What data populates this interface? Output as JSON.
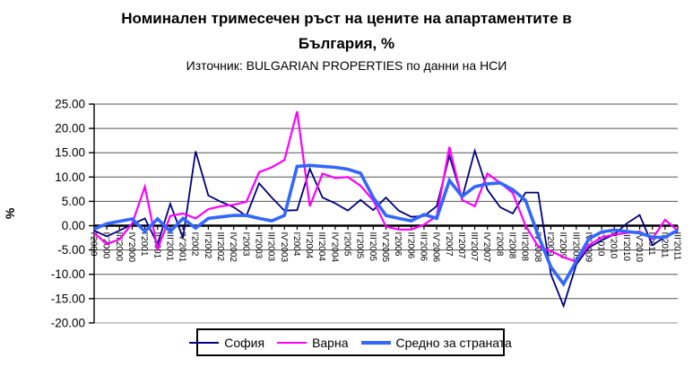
{
  "title": {
    "line1": "Номинален тримесечен ръст на цените на апартаментите в",
    "line2": "България, %",
    "subtitle": "Източник: BULGARIAN PROPERTIES по данни на НСИ"
  },
  "y_axis": {
    "label": "%",
    "ticks": [
      "25.00",
      "20.00",
      "15.00",
      "10.00",
      "5.00",
      "0.00",
      "-5.00",
      "-10.00",
      "-15.00",
      "-20.00"
    ],
    "max": 25,
    "min": -20,
    "step": 5
  },
  "chart_data": {
    "type": "line",
    "title": "Номинален тримесечен ръст на цените на апартаментите в България, %",
    "subtitle": "Източник: BULGARIAN PROPERTIES по данни на НСИ",
    "xlabel": "",
    "ylabel": "%",
    "ylim": [
      -20,
      25
    ],
    "grid": true,
    "legend_position": "bottom",
    "categories": [
      "I'2000",
      "II'2000",
      "III'2000",
      "IV'2000",
      "I'2001",
      "II'2001",
      "III'2001",
      "IV'2001",
      "I'2002",
      "II'2002",
      "III'2002",
      "IV'2002",
      "I'2003",
      "II'2003",
      "III'2003",
      "IV'2003",
      "I'2004",
      "II'2004",
      "III'2004",
      "IV'2004",
      "I'2005",
      "II'2005",
      "III'2005",
      "IV'2005",
      "I'2006",
      "II'2006",
      "III'2006",
      "IV'2006",
      "I'2007",
      "II'2007",
      "III'2007",
      "IV'2007",
      "I'2008",
      "II'2008",
      "III'2008",
      "IV'2008",
      "I'2009",
      "II'2009",
      "III'2009",
      "IV'2009",
      "I'2010",
      "II'2010",
      "III'2010",
      "IV'2010",
      "I'2011",
      "II'2011",
      "III'2011"
    ],
    "series": [
      {
        "name": "София",
        "color": "#000080",
        "stroke_width": 1.8,
        "values": [
          -1.0,
          -2.2,
          -1.0,
          0.3,
          1.5,
          -3.8,
          4.5,
          -2.5,
          15.3,
          6.2,
          4.9,
          3.8,
          2.0,
          8.7,
          5.8,
          3.1,
          3.2,
          11.7,
          5.8,
          4.6,
          3.1,
          5.3,
          3.2,
          5.8,
          3.1,
          1.8,
          2.0,
          4.0,
          14.4,
          5.6,
          15.4,
          7.4,
          3.8,
          2.5,
          6.8,
          6.8,
          -10.0,
          -16.5,
          -8.0,
          -4.5,
          -3.0,
          -1.8,
          0.5,
          2.2,
          -4.0,
          -2.3,
          -1.2
        ]
      },
      {
        "name": "Варна",
        "color": "#FF00FF",
        "stroke_width": 2.2,
        "values": [
          -1.5,
          -3.8,
          -2.8,
          0.5,
          8.0,
          -4.8,
          2.0,
          2.5,
          1.5,
          3.4,
          4.0,
          4.3,
          4.9,
          11.0,
          12.0,
          13.5,
          23.5,
          4.0,
          10.7,
          9.8,
          10.0,
          8.2,
          5.2,
          -0.2,
          -0.8,
          -0.8,
          0.2,
          2.0,
          16.2,
          5.3,
          4.0,
          10.7,
          8.8,
          6.7,
          0.0,
          -4.3,
          -5.2,
          -6.5,
          -7.4,
          -4.0,
          -2.4,
          -1.8,
          -1.5,
          -1.2,
          -2.7,
          1.2,
          -1.0
        ]
      },
      {
        "name": "Средно за страната",
        "color": "#3366FF",
        "stroke_width": 3.6,
        "values": [
          -0.7,
          0.4,
          0.9,
          1.4,
          -1.2,
          1.4,
          -1.2,
          1.5,
          -0.5,
          1.5,
          1.8,
          2.1,
          2.1,
          1.5,
          1.0,
          2.1,
          12.2,
          12.4,
          12.2,
          12.0,
          11.6,
          10.8,
          5.8,
          2.1,
          1.5,
          1.0,
          2.3,
          1.5,
          9.3,
          6.0,
          8.0,
          8.6,
          8.8,
          7.4,
          5.2,
          -2.0,
          -8.5,
          -12.0,
          -7.3,
          -2.7,
          -1.3,
          -0.9,
          -1.2,
          -1.5,
          -2.4,
          -2.4,
          -0.9
        ]
      }
    ]
  },
  "style": {
    "gridline_color": "#555555",
    "axis_color": "#000000",
    "background": "#ffffff"
  }
}
